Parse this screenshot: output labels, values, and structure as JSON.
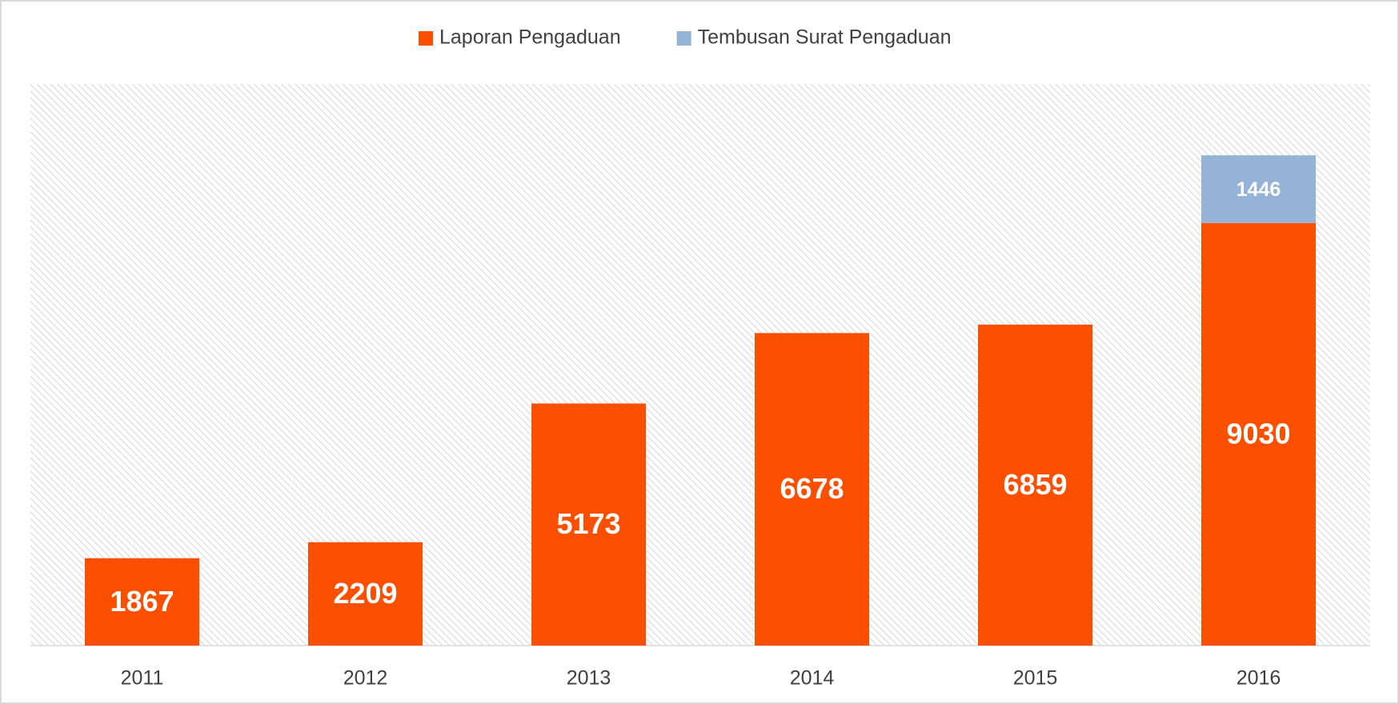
{
  "chart_data": {
    "type": "stacked_bar",
    "categories": [
      "2011",
      "2012",
      "2013",
      "2014",
      "2015",
      "2016"
    ],
    "series": [
      {
        "name": "Laporan Pengaduan",
        "color": "#fb4f00",
        "values": [
          1867,
          2209,
          5173,
          6678,
          6859,
          9030
        ]
      },
      {
        "name": "Tembusan Surat Pengaduan",
        "color": "#95b3d7",
        "values": [
          null,
          null,
          null,
          null,
          null,
          1446
        ]
      }
    ],
    "ylim": [
      0,
      12000
    ]
  }
}
